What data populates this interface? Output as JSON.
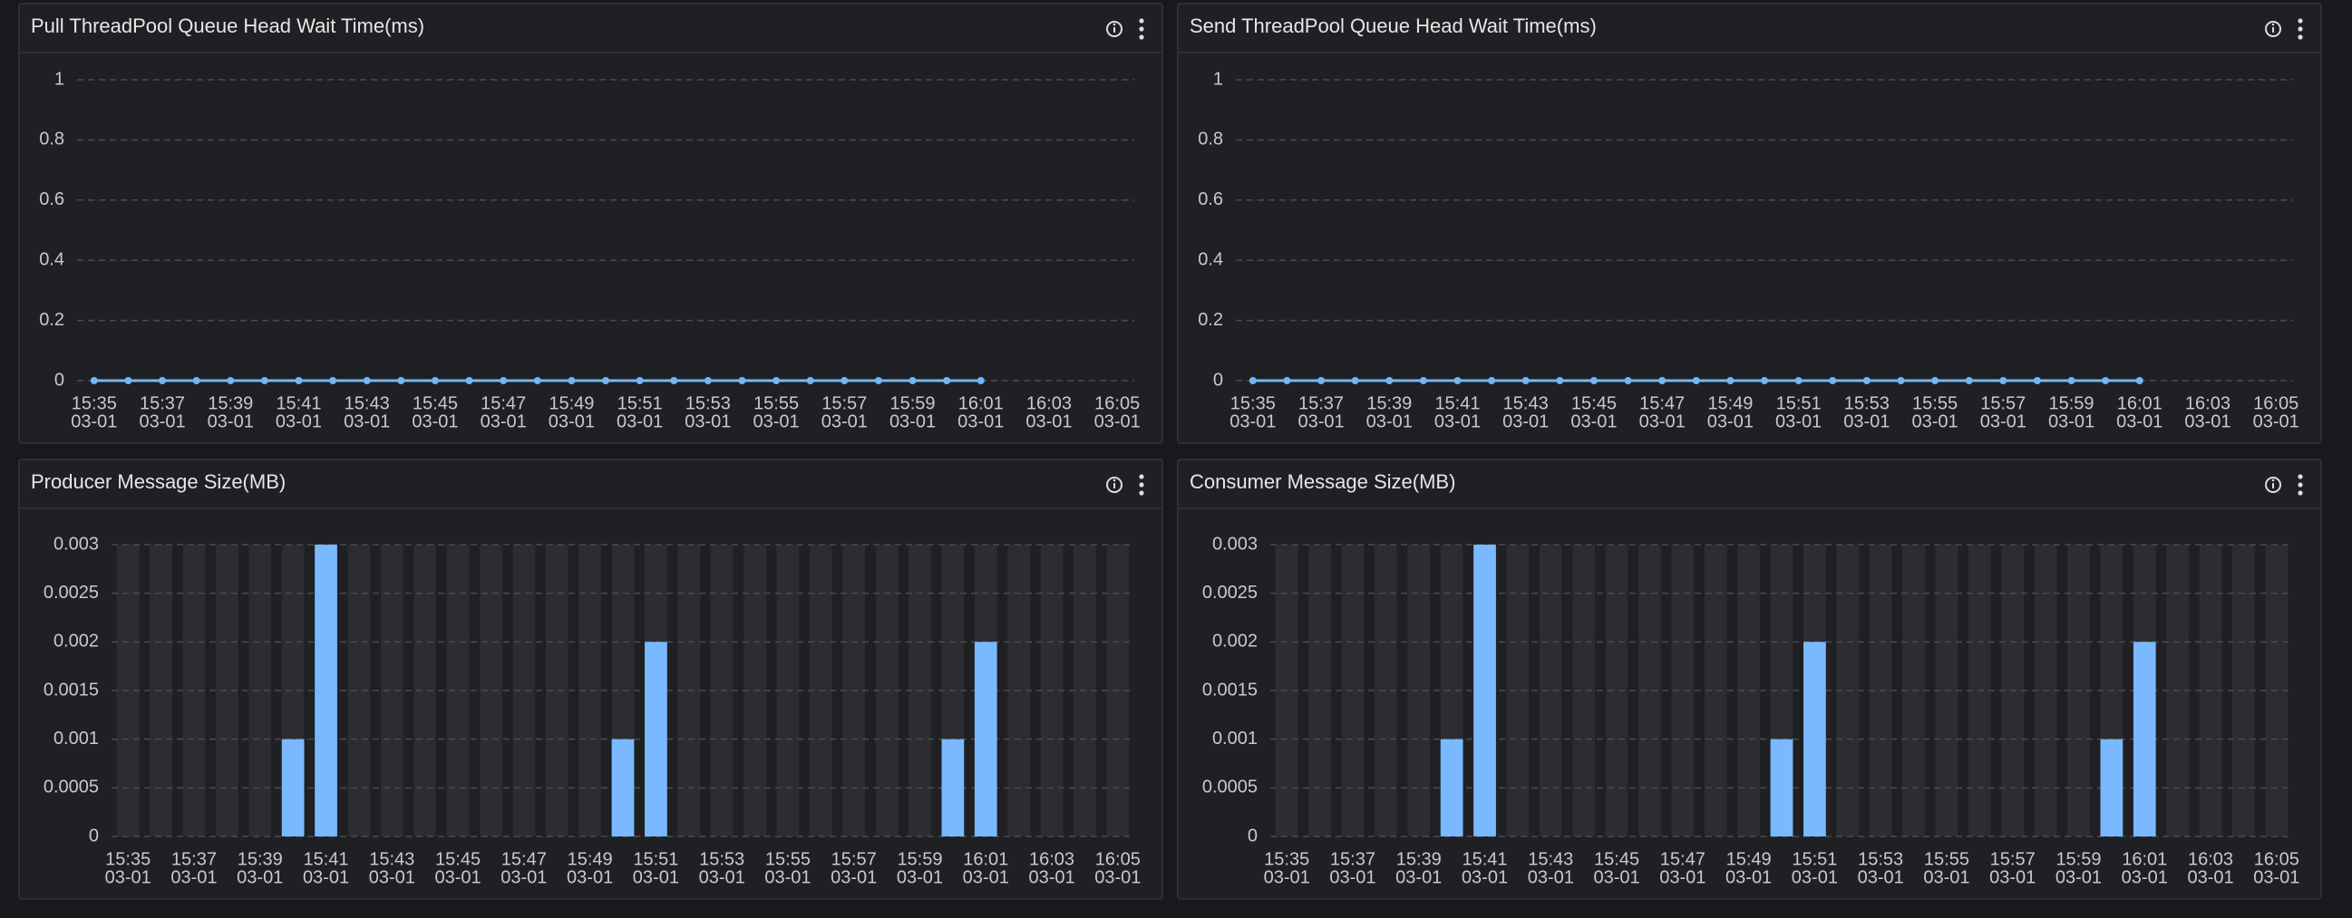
{
  "chart_data": [
    {
      "type": "line",
      "title": "Pull ThreadPool Queue Head Wait Time(ms)",
      "color": "#73b6f5",
      "categories": [
        "15:35",
        null,
        "15:37",
        null,
        "15:39",
        null,
        "15:41",
        null,
        "15:43",
        null,
        "15:45",
        null,
        "15:47",
        null,
        "15:49",
        null,
        "15:51",
        null,
        "15:53",
        null,
        "15:55",
        null,
        "15:57",
        null,
        "15:59",
        null,
        "16:01",
        null,
        "16:03",
        null,
        "16:05"
      ],
      "category_dates": [
        "03-01",
        null,
        "03-01",
        null,
        "03-01",
        null,
        "03-01",
        null,
        "03-01",
        null,
        "03-01",
        null,
        "03-01",
        null,
        "03-01",
        null,
        "03-01",
        null,
        "03-01",
        null,
        "03-01",
        null,
        "03-01",
        null,
        "03-01",
        null,
        "03-01",
        null,
        "03-01",
        null,
        "03-01"
      ],
      "values": [
        0,
        0,
        0,
        0,
        0,
        0,
        0,
        0,
        0,
        0,
        0,
        0,
        0,
        0,
        0,
        0,
        0,
        0,
        0,
        0,
        0,
        0,
        0,
        0,
        0,
        0,
        0,
        null,
        null,
        null,
        null
      ],
      "ylim": [
        0,
        1
      ],
      "yticks": [
        0,
        0.2,
        0.4,
        0.6,
        0.8,
        1
      ],
      "grid": true
    },
    {
      "type": "line",
      "title": "Send ThreadPool Queue Head Wait Time(ms)",
      "color": "#73b6f5",
      "categories": [
        "15:35",
        null,
        "15:37",
        null,
        "15:39",
        null,
        "15:41",
        null,
        "15:43",
        null,
        "15:45",
        null,
        "15:47",
        null,
        "15:49",
        null,
        "15:51",
        null,
        "15:53",
        null,
        "15:55",
        null,
        "15:57",
        null,
        "15:59",
        null,
        "16:01",
        null,
        "16:03",
        null,
        "16:05"
      ],
      "category_dates": [
        "03-01",
        null,
        "03-01",
        null,
        "03-01",
        null,
        "03-01",
        null,
        "03-01",
        null,
        "03-01",
        null,
        "03-01",
        null,
        "03-01",
        null,
        "03-01",
        null,
        "03-01",
        null,
        "03-01",
        null,
        "03-01",
        null,
        "03-01",
        null,
        "03-01",
        null,
        "03-01",
        null,
        "03-01"
      ],
      "values": [
        0,
        0,
        0,
        0,
        0,
        0,
        0,
        0,
        0,
        0,
        0,
        0,
        0,
        0,
        0,
        0,
        0,
        0,
        0,
        0,
        0,
        0,
        0,
        0,
        0,
        0,
        0,
        null,
        null,
        null,
        null
      ],
      "ylim": [
        0,
        1
      ],
      "yticks": [
        0,
        0.2,
        0.4,
        0.6,
        0.8,
        1
      ],
      "grid": true
    },
    {
      "type": "bar",
      "title": "Producer Message Size(MB)",
      "color": "#7ab8ff",
      "categories": [
        "15:35",
        null,
        "15:37",
        null,
        "15:39",
        null,
        "15:41",
        null,
        "15:43",
        null,
        "15:45",
        null,
        "15:47",
        null,
        "15:49",
        null,
        "15:51",
        null,
        "15:53",
        null,
        "15:55",
        null,
        "15:57",
        null,
        "15:59",
        null,
        "16:01",
        null,
        "16:03",
        null,
        "16:05"
      ],
      "category_dates": [
        "03-01",
        null,
        "03-01",
        null,
        "03-01",
        null,
        "03-01",
        null,
        "03-01",
        null,
        "03-01",
        null,
        "03-01",
        null,
        "03-01",
        null,
        "03-01",
        null,
        "03-01",
        null,
        "03-01",
        null,
        "03-01",
        null,
        "03-01",
        null,
        "03-01",
        null,
        "03-01",
        null,
        "03-01"
      ],
      "values": [
        0,
        0,
        0,
        0,
        0,
        0.001,
        0.003,
        0,
        0,
        0,
        0,
        0,
        0,
        0,
        0,
        0.001,
        0.002,
        0,
        0,
        0,
        0,
        0,
        0,
        0,
        0,
        0.001,
        0.002,
        0,
        0,
        0,
        0
      ],
      "ylim": [
        0,
        0.003
      ],
      "yticks": [
        0,
        0.0005,
        0.001,
        0.0015,
        0.002,
        0.0025,
        0.003
      ],
      "grid": true
    },
    {
      "type": "bar",
      "title": "Consumer Message Size(MB)",
      "color": "#7ab8ff",
      "categories": [
        "15:35",
        null,
        "15:37",
        null,
        "15:39",
        null,
        "15:41",
        null,
        "15:43",
        null,
        "15:45",
        null,
        "15:47",
        null,
        "15:49",
        null,
        "15:51",
        null,
        "15:53",
        null,
        "15:55",
        null,
        "15:57",
        null,
        "15:59",
        null,
        "16:01",
        null,
        "16:03",
        null,
        "16:05"
      ],
      "category_dates": [
        "03-01",
        null,
        "03-01",
        null,
        "03-01",
        null,
        "03-01",
        null,
        "03-01",
        null,
        "03-01",
        null,
        "03-01",
        null,
        "03-01",
        null,
        "03-01",
        null,
        "03-01",
        null,
        "03-01",
        null,
        "03-01",
        null,
        "03-01",
        null,
        "03-01",
        null,
        "03-01",
        null,
        "03-01"
      ],
      "values": [
        0,
        0,
        0,
        0,
        0,
        0.001,
        0.003,
        0,
        0,
        0,
        0,
        0,
        0,
        0,
        0,
        0.001,
        0.002,
        0,
        0,
        0,
        0,
        0,
        0,
        0,
        0,
        0.001,
        0.002,
        0,
        0,
        0,
        0
      ],
      "ylim": [
        0,
        0.003
      ],
      "yticks": [
        0,
        0.0005,
        0.001,
        0.0015,
        0.002,
        0.0025,
        0.003
      ],
      "grid": true
    }
  ]
}
